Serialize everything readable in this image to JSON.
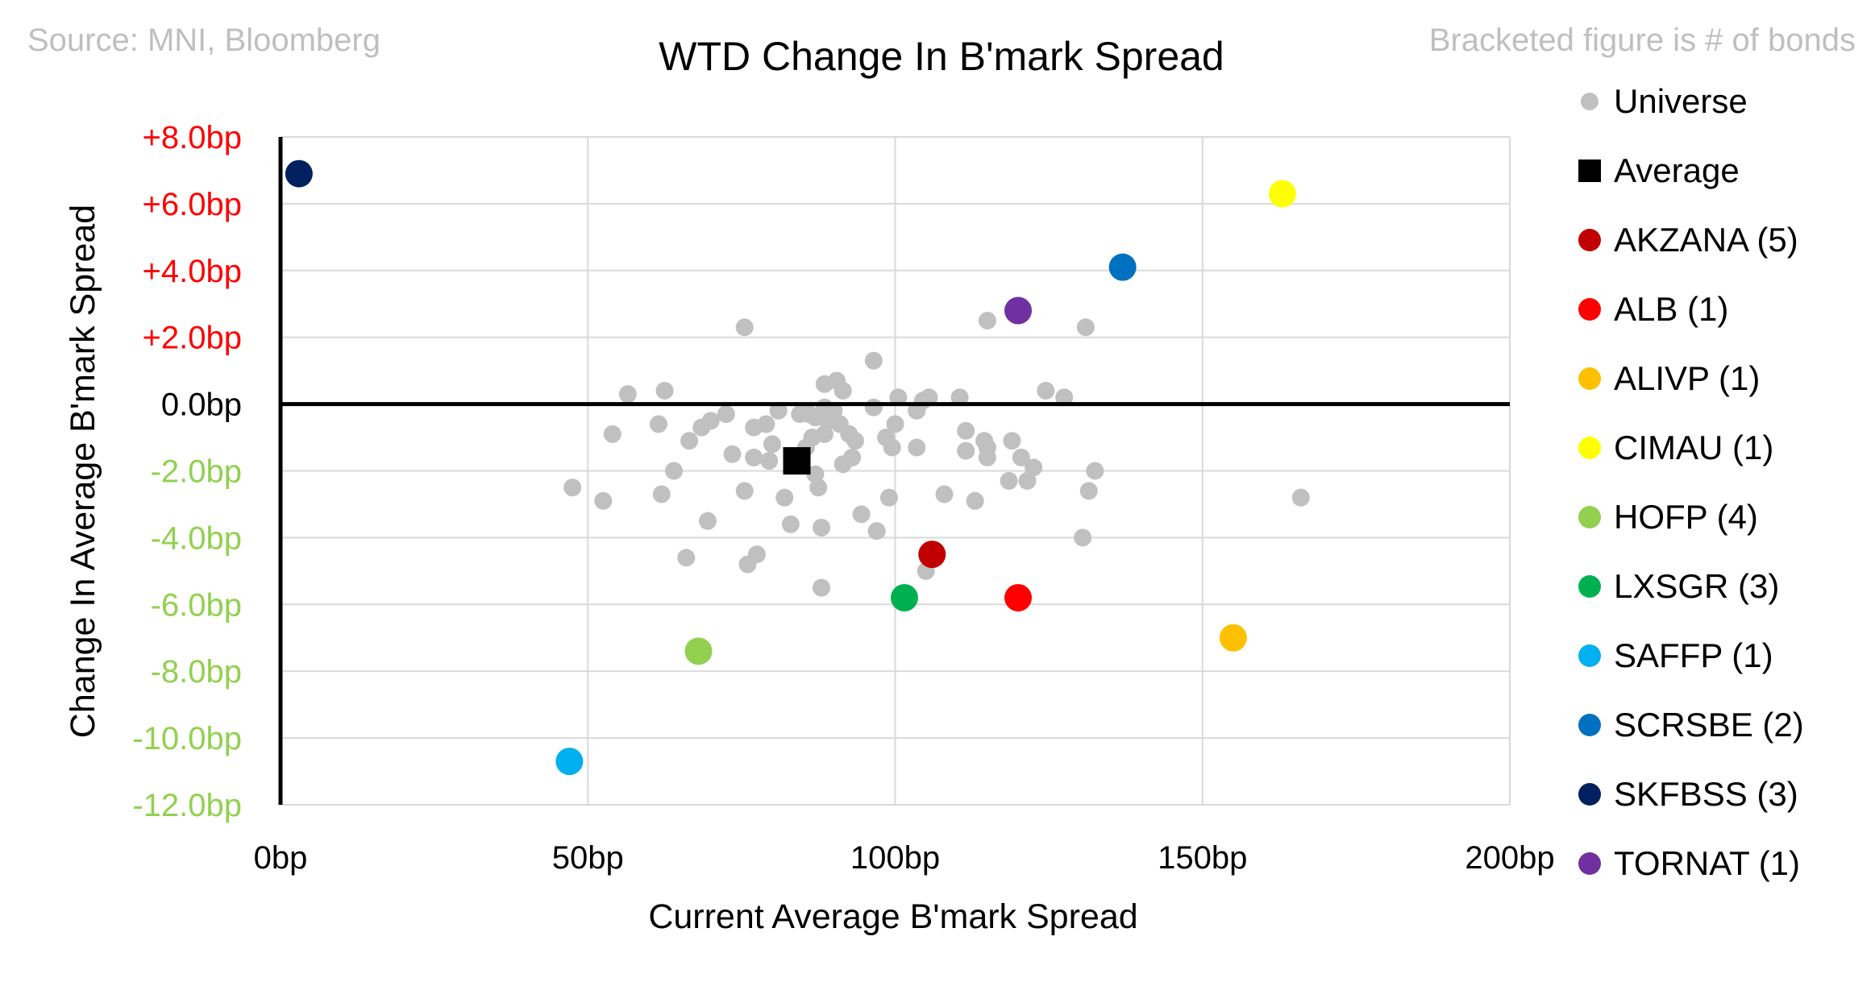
{
  "chart_data": {
    "type": "scatter",
    "title": "WTD Change In B'mark Spread",
    "source_note": "Source: MNI, Bloomberg",
    "bracket_note": "Bracketed figure is # of bonds",
    "xlabel": "Current Average B'mark Spread",
    "ylabel": "Change In Average B'mark Spread",
    "xlim": [
      0,
      200
    ],
    "ylim": [
      -12,
      8
    ],
    "grid": true,
    "legend_position": "right",
    "x_ticks": [
      {
        "value": 0,
        "label": "0bp"
      },
      {
        "value": 50,
        "label": "50bp"
      },
      {
        "value": 100,
        "label": "100bp"
      },
      {
        "value": 150,
        "label": "150bp"
      },
      {
        "value": 200,
        "label": "200bp"
      }
    ],
    "y_ticks": [
      {
        "value": 8,
        "label": "+8.0bp",
        "color": "#ff0000"
      },
      {
        "value": 6,
        "label": "+6.0bp",
        "color": "#ff0000"
      },
      {
        "value": 4,
        "label": "+4.0bp",
        "color": "#ff0000"
      },
      {
        "value": 2,
        "label": "+2.0bp",
        "color": "#ff0000"
      },
      {
        "value": 0,
        "label": "0.0bp",
        "color": "#000000"
      },
      {
        "value": -2,
        "label": "-2.0bp",
        "color": "#92d050"
      },
      {
        "value": -4,
        "label": "-4.0bp",
        "color": "#92d050"
      },
      {
        "value": -6,
        "label": "-6.0bp",
        "color": "#92d050"
      },
      {
        "value": -8,
        "label": "-8.0bp",
        "color": "#92d050"
      },
      {
        "value": -10,
        "label": "-10.0bp",
        "color": "#92d050"
      },
      {
        "value": -12,
        "label": "-12.0bp",
        "color": "#92d050"
      }
    ],
    "universe": {
      "name": "Universe",
      "color": "#c0c0c0",
      "points": [
        [
          47.5,
          -2.5
        ],
        [
          52.5,
          -2.9
        ],
        [
          54,
          -0.9
        ],
        [
          56.5,
          0.3
        ],
        [
          61.5,
          -0.6
        ],
        [
          62,
          -2.7
        ],
        [
          62.5,
          0.4
        ],
        [
          64,
          -2.0
        ],
        [
          66,
          -4.6
        ],
        [
          66.5,
          -1.1
        ],
        [
          68.5,
          -0.7
        ],
        [
          69.5,
          -3.5
        ],
        [
          70,
          -0.5
        ],
        [
          72.5,
          -0.3
        ],
        [
          73.5,
          -1.5
        ],
        [
          75.5,
          2.3
        ],
        [
          75.5,
          -2.6
        ],
        [
          76,
          -4.8
        ],
        [
          77,
          -0.7
        ],
        [
          77,
          -1.6
        ],
        [
          77.5,
          -4.5
        ],
        [
          79,
          -0.6
        ],
        [
          79.5,
          -1.7
        ],
        [
          80,
          -1.2
        ],
        [
          81,
          -0.2
        ],
        [
          82,
          -2.8
        ],
        [
          83,
          -3.6
        ],
        [
          84.5,
          -0.3
        ],
        [
          85.5,
          -1.3
        ],
        [
          86,
          -0.3
        ],
        [
          86.5,
          -1.0
        ],
        [
          87,
          -2.1
        ],
        [
          87,
          -0.4
        ],
        [
          87.5,
          -2.5
        ],
        [
          88,
          -3.7
        ],
        [
          88,
          -5.5
        ],
        [
          88.5,
          -0.1
        ],
        [
          88.5,
          -0.9
        ],
        [
          88.5,
          0.6
        ],
        [
          89,
          -0.5
        ],
        [
          90,
          -0.2
        ],
        [
          90.5,
          0.7
        ],
        [
          91,
          -0.6
        ],
        [
          91.5,
          0.4
        ],
        [
          91.5,
          -1.8
        ],
        [
          92.5,
          -0.9
        ],
        [
          93,
          -1.6
        ],
        [
          93.5,
          -1.1
        ],
        [
          94.5,
          -3.3
        ],
        [
          96.5,
          1.3
        ],
        [
          96.5,
          -0.1
        ],
        [
          97,
          -3.8
        ],
        [
          98.5,
          -1.0
        ],
        [
          99,
          -2.8
        ],
        [
          99.5,
          -1.3
        ],
        [
          100,
          -0.6
        ],
        [
          100.5,
          0.2
        ],
        [
          103.5,
          -0.2
        ],
        [
          103.5,
          -1.3
        ],
        [
          104.5,
          0.1
        ],
        [
          105,
          -5.0
        ],
        [
          105.5,
          0.2
        ],
        [
          108,
          -2.7
        ],
        [
          110.5,
          0.2
        ],
        [
          111.5,
          -0.8
        ],
        [
          111.5,
          -1.4
        ],
        [
          113,
          -2.9
        ],
        [
          114.5,
          -1.1
        ],
        [
          115,
          -1.6
        ],
        [
          115,
          -1.3
        ],
        [
          115,
          2.5
        ],
        [
          118.5,
          -2.3
        ],
        [
          119,
          -1.1
        ],
        [
          120.5,
          -1.6
        ],
        [
          121.5,
          -2.3
        ],
        [
          122.5,
          -1.9
        ],
        [
          124.5,
          0.4
        ],
        [
          127.5,
          0.2
        ],
        [
          130.5,
          -4.0
        ],
        [
          131,
          2.3
        ],
        [
          131.5,
          -2.6
        ],
        [
          132.5,
          -2.0
        ],
        [
          166,
          -2.8
        ]
      ]
    },
    "average": {
      "name": "Average",
      "color": "#000000",
      "x": 84,
      "y": -1.7
    },
    "series": [
      {
        "name": "AKZANA",
        "count": "(5)",
        "color": "#c00000",
        "x": 106,
        "y": -4.5
      },
      {
        "name": "ALB",
        "count": "(1)",
        "color": "#ff0000",
        "x": 120,
        "y": -5.8
      },
      {
        "name": "ALIVP",
        "count": "(1)",
        "color": "#ffc000",
        "x": 155,
        "y": -7.0
      },
      {
        "name": "CIMAU",
        "count": "(1)",
        "color": "#ffff00",
        "x": 163,
        "y": 6.3
      },
      {
        "name": "HOFP",
        "count": "(4)",
        "color": "#92d050",
        "x": 68,
        "y": -7.4
      },
      {
        "name": "LXSGR",
        "count": "(3)",
        "color": "#00b050",
        "x": 101.5,
        "y": -5.8
      },
      {
        "name": "SAFFP",
        "count": "(1)",
        "color": "#00b0f0",
        "x": 47,
        "y": -10.7
      },
      {
        "name": "SCRSBE",
        "count": "(2)",
        "color": "#0070c0",
        "x": 137,
        "y": 4.1
      },
      {
        "name": "SKFBSS",
        "count": "(3)",
        "color": "#002060",
        "x": 3,
        "y": 6.9
      },
      {
        "name": "TORNAT",
        "count": "(1)",
        "color": "#7030a0",
        "x": 120,
        "y": 2.8
      }
    ]
  }
}
